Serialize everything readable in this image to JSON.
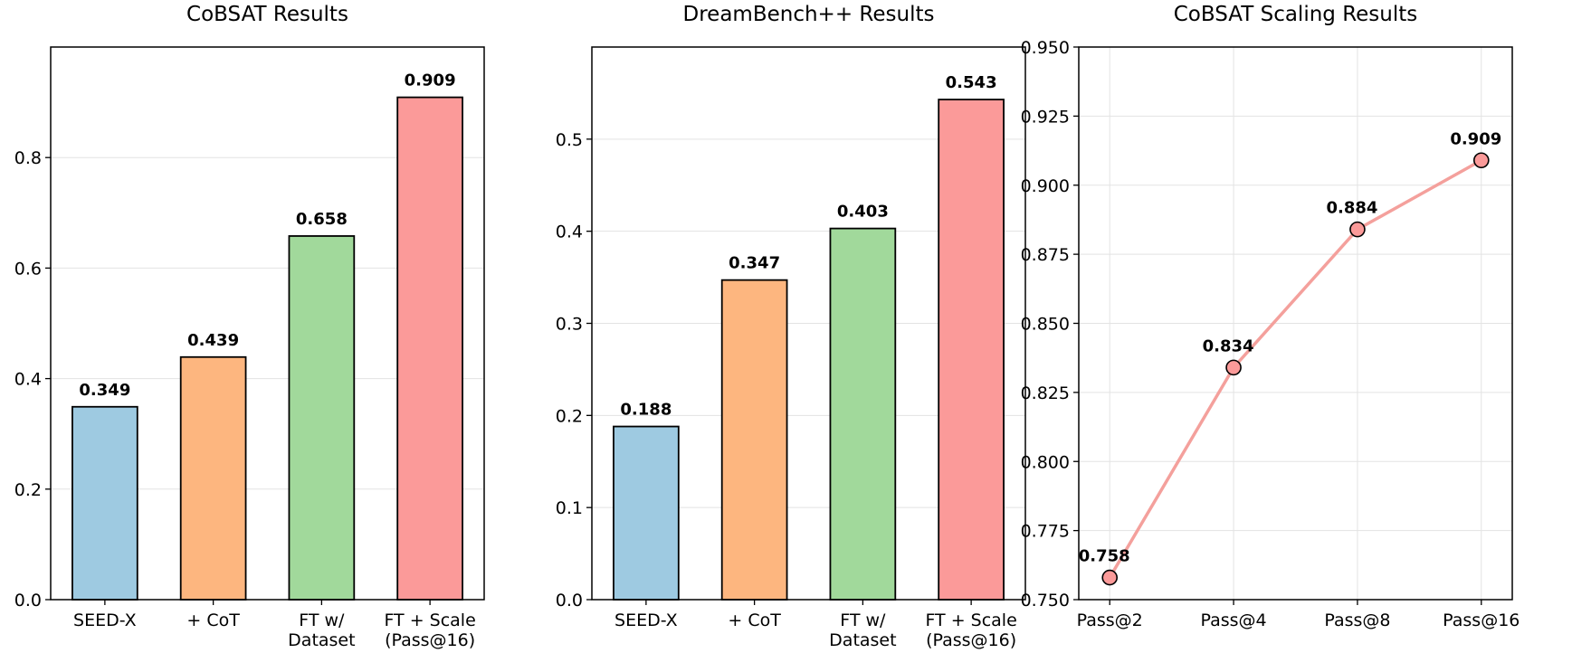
{
  "chart_data": [
    {
      "type": "bar",
      "title": "CoBSAT Results",
      "categories": [
        "SEED-X",
        "+ CoT",
        "FT w/\nDataset",
        "FT + Scale\n(Pass@16)"
      ],
      "values": [
        0.349,
        0.439,
        0.658,
        0.909
      ],
      "data_labels": [
        "0.349",
        "0.439",
        "0.658",
        "0.909"
      ],
      "colors": [
        "#9ecae1",
        "#fdb67f",
        "#a1d99b",
        "#fb9a99"
      ],
      "ylim": [
        0,
        1.0
      ],
      "yticks": [
        "0.0",
        "0.2",
        "0.4",
        "0.6",
        "0.8"
      ],
      "ytick_values": [
        0,
        0.2,
        0.4,
        0.6,
        0.8
      ],
      "grid": "y"
    },
    {
      "type": "bar",
      "title": "DreamBench++ Results",
      "categories": [
        "SEED-X",
        "+ CoT",
        "FT w/\nDataset",
        "FT + Scale\n(Pass@16)"
      ],
      "values": [
        0.188,
        0.347,
        0.403,
        0.543
      ],
      "data_labels": [
        "0.188",
        "0.347",
        "0.403",
        "0.543"
      ],
      "colors": [
        "#9ecae1",
        "#fdb67f",
        "#a1d99b",
        "#fb9a99"
      ],
      "ylim": [
        0,
        0.6
      ],
      "yticks": [
        "0.0",
        "0.1",
        "0.2",
        "0.3",
        "0.4",
        "0.5"
      ],
      "ytick_values": [
        0,
        0.1,
        0.2,
        0.3,
        0.4,
        0.5
      ],
      "grid": "y"
    },
    {
      "type": "line",
      "title": "CoBSAT Scaling Results",
      "categories": [
        "Pass@2",
        "Pass@4",
        "Pass@8",
        "Pass@16"
      ],
      "values": [
        0.758,
        0.834,
        0.884,
        0.909
      ],
      "data_labels": [
        "0.758",
        "0.834",
        "0.884",
        "0.909"
      ],
      "color": "#f4a09c",
      "marker_color": "#fb9a99",
      "ylim": [
        0.75,
        0.95
      ],
      "yticks": [
        "0.750",
        "0.775",
        "0.800",
        "0.825",
        "0.850",
        "0.875",
        "0.900",
        "0.925",
        "0.950"
      ],
      "ytick_values": [
        0.75,
        0.775,
        0.8,
        0.825,
        0.85,
        0.875,
        0.9,
        0.925,
        0.95
      ],
      "grid": "both"
    }
  ]
}
